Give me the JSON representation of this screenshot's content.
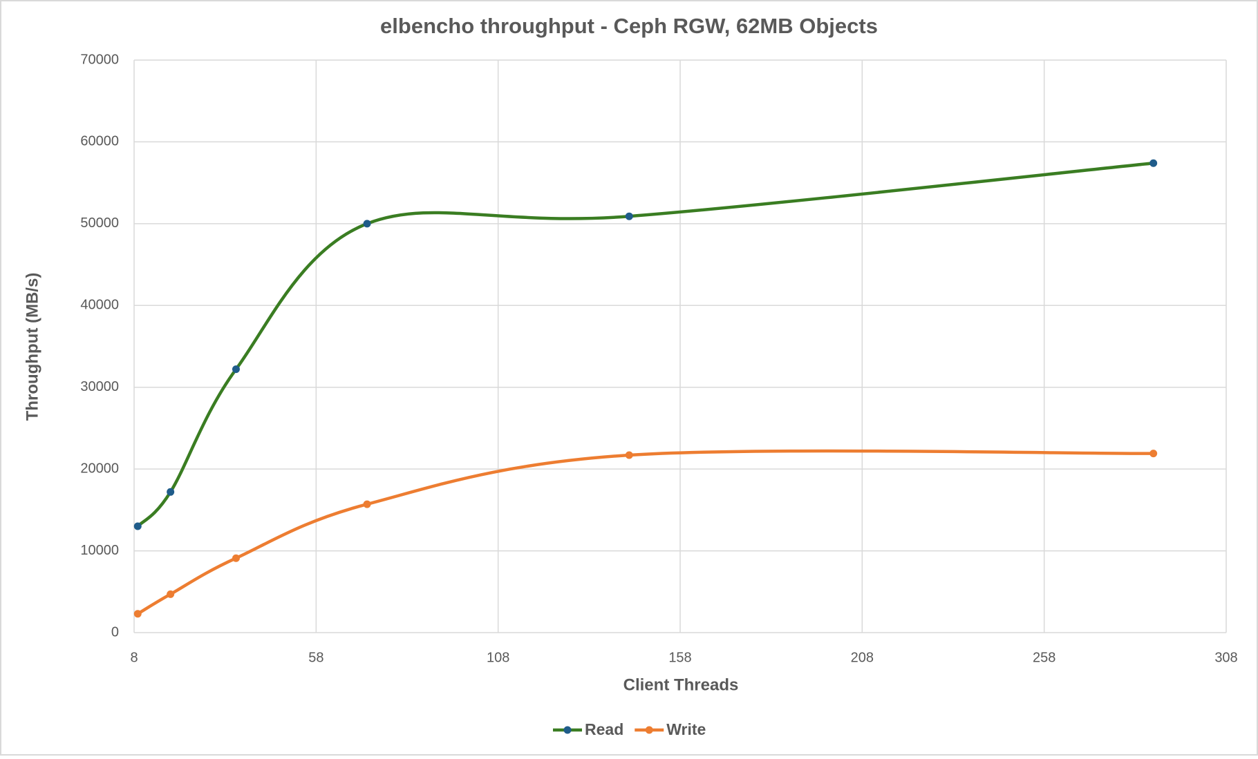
{
  "chart_data": {
    "type": "line",
    "title": "elbencho throughput - Ceph RGW, 62MB Objects",
    "x_label": "Client Threads",
    "y_label": "Throughput (MB/s)",
    "x": [
      9,
      18,
      36,
      72,
      144,
      288
    ],
    "series": [
      {
        "name": "Read",
        "color": "#3a7d22",
        "marker_color": "#1f5c8a",
        "values": [
          13000,
          17200,
          32200,
          50000,
          50900,
          57400
        ]
      },
      {
        "name": "Write",
        "color": "#ed7d31",
        "marker_color": "#ed7d31",
        "values": [
          2300,
          4700,
          9100,
          15700,
          21700,
          21900
        ]
      }
    ],
    "xlim": [
      8,
      308
    ],
    "xticks": [
      8,
      58,
      108,
      158,
      208,
      258,
      308
    ],
    "ylim": [
      0,
      70000
    ],
    "yticks": [
      0,
      10000,
      20000,
      30000,
      40000,
      50000,
      60000,
      70000
    ],
    "grid": true,
    "smooth": true,
    "legend": "bottom"
  }
}
